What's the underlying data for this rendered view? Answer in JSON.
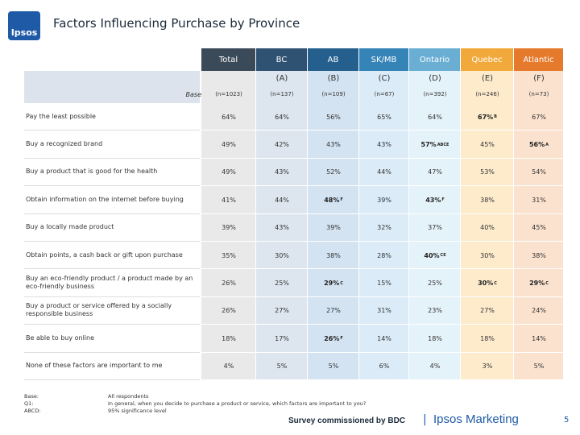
{
  "header": {
    "logo": "Ipsos",
    "title": "Factors Influencing Purchase by Province"
  },
  "table": {
    "columns": [
      {
        "name": "Total",
        "letter": null,
        "base": "(n=1023)"
      },
      {
        "name": "BC",
        "letter": "(A)",
        "base": "(n=137)"
      },
      {
        "name": "AB",
        "letter": "(B)",
        "base": "(n=109)"
      },
      {
        "name": "SK/MB",
        "letter": "(C)",
        "base": "(n=67)"
      },
      {
        "name": "Ontario",
        "letter": "(D)",
        "base": "(n=392)"
      },
      {
        "name": "Quebec",
        "letter": "(E)",
        "base": "(n=246)"
      },
      {
        "name": "Atlantic",
        "letter": "(F)",
        "base": "(n=73)"
      }
    ],
    "base_label": "Base",
    "rows": [
      {
        "label": "Pay the least possible",
        "cells": [
          {
            "value": "64%"
          },
          {
            "value": "64%"
          },
          {
            "value": "56%"
          },
          {
            "value": "65%"
          },
          {
            "value": "64%"
          },
          {
            "value": "67%",
            "sig": "B"
          },
          {
            "value": "67%"
          }
        ]
      },
      {
        "label": "Buy a recognized brand",
        "cells": [
          {
            "value": "49%"
          },
          {
            "value": "42%"
          },
          {
            "value": "43%"
          },
          {
            "value": "43%"
          },
          {
            "value": "57%",
            "sig": "ABCE"
          },
          {
            "value": "45%"
          },
          {
            "value": "56%",
            "sig": "A"
          }
        ]
      },
      {
        "label": "Buy a product that is good for the health",
        "cells": [
          {
            "value": "49%"
          },
          {
            "value": "43%"
          },
          {
            "value": "52%"
          },
          {
            "value": "44%"
          },
          {
            "value": "47%"
          },
          {
            "value": "53%"
          },
          {
            "value": "54%"
          }
        ]
      },
      {
        "label": "Obtain information on the internet before buying",
        "cells": [
          {
            "value": "41%"
          },
          {
            "value": "44%"
          },
          {
            "value": "48%",
            "sig": "F"
          },
          {
            "value": "39%"
          },
          {
            "value": "43%",
            "sig": "F"
          },
          {
            "value": "38%"
          },
          {
            "value": "31%"
          }
        ]
      },
      {
        "label": "Buy a locally made product",
        "cells": [
          {
            "value": "39%"
          },
          {
            "value": "43%"
          },
          {
            "value": "39%"
          },
          {
            "value": "32%"
          },
          {
            "value": "37%"
          },
          {
            "value": "40%"
          },
          {
            "value": "45%"
          }
        ]
      },
      {
        "label": "Obtain points, a cash back or gift upon purchase",
        "cells": [
          {
            "value": "35%"
          },
          {
            "value": "30%"
          },
          {
            "value": "38%"
          },
          {
            "value": "28%"
          },
          {
            "value": "40%",
            "sig": "CE"
          },
          {
            "value": "30%"
          },
          {
            "value": "38%"
          }
        ]
      },
      {
        "label": "Buy an eco-friendly product / a product made by an eco-friendly business",
        "cells": [
          {
            "value": "26%"
          },
          {
            "value": "25%"
          },
          {
            "value": "29%",
            "sig": "C"
          },
          {
            "value": "15%"
          },
          {
            "value": "25%"
          },
          {
            "value": "30%",
            "sig": "C"
          },
          {
            "value": "29%",
            "sig": "C"
          }
        ]
      },
      {
        "label": "Buy a product or service offered by a socially responsible business",
        "cells": [
          {
            "value": "26%"
          },
          {
            "value": "27%"
          },
          {
            "value": "27%"
          },
          {
            "value": "31%"
          },
          {
            "value": "23%"
          },
          {
            "value": "27%"
          },
          {
            "value": "24%"
          }
        ]
      },
      {
        "label": "Be able to buy online",
        "cells": [
          {
            "value": "18%"
          },
          {
            "value": "17%"
          },
          {
            "value": "26%",
            "sig": "F"
          },
          {
            "value": "14%"
          },
          {
            "value": "18%"
          },
          {
            "value": "18%"
          },
          {
            "value": "14%"
          }
        ]
      },
      {
        "label": "None of these factors are important to me",
        "cells": [
          {
            "value": "4%"
          },
          {
            "value": "5%"
          },
          {
            "value": "5%"
          },
          {
            "value": "6%"
          },
          {
            "value": "4%"
          },
          {
            "value": "3%"
          },
          {
            "value": "5%"
          }
        ]
      }
    ]
  },
  "notes": [
    {
      "key": "Base:",
      "text": "All respondents"
    },
    {
      "key": "Q1:",
      "text": "In general, when you decide to purchase a product or service, which factors are important to you?"
    },
    {
      "key": "ABCD:",
      "text": "95% significance level"
    }
  ],
  "footer": {
    "credit": "Survey commissioned by BDC",
    "separator": "|",
    "brand": "Ipsos Marketing",
    "page": "5"
  }
}
